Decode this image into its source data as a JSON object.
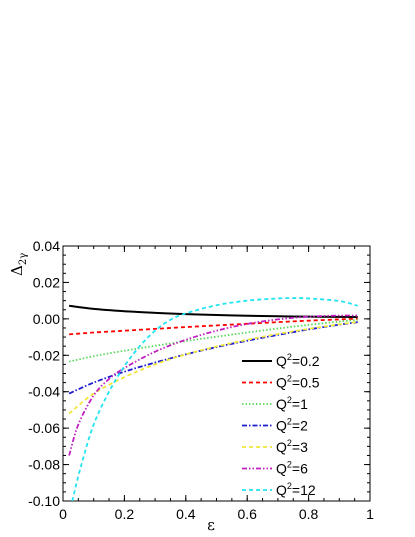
{
  "chart_data": {
    "type": "line",
    "title": "",
    "xlabel": "ε",
    "ylabel_main": "Δ",
    "ylabel_sub": "2γ",
    "xlim": [
      0,
      1
    ],
    "ylim": [
      -0.1,
      0.04
    ],
    "x_ticks": [
      "0",
      "0.2",
      "0.4",
      "0.6",
      "0.8",
      "1"
    ],
    "y_ticks": [
      "-0.10",
      "-0.08",
      "-0.06",
      "-0.04",
      "-0.02",
      "0.00",
      "0.02",
      "0.04"
    ],
    "grid": false,
    "legend_position": "bottom-right",
    "series": [
      {
        "name": "Q²=0.2",
        "legend_base": "Q",
        "legend_sup": "2",
        "legend_value": "=0.2",
        "color": "#000000",
        "dash": "solid",
        "x": [
          0.02,
          0.1,
          0.2,
          0.3,
          0.4,
          0.5,
          0.6,
          0.7,
          0.8,
          0.9,
          0.96
        ],
        "y": [
          0.0072,
          0.0055,
          0.0042,
          0.0033,
          0.0026,
          0.0021,
          0.0017,
          0.0014,
          0.0012,
          0.0011,
          0.001
        ]
      },
      {
        "name": "Q²=0.5",
        "legend_base": "Q",
        "legend_sup": "2",
        "legend_value": "=0.5",
        "color": "#ff0000",
        "dash": "dash",
        "x": [
          0.02,
          0.1,
          0.2,
          0.3,
          0.4,
          0.5,
          0.6,
          0.7,
          0.8,
          0.9,
          0.96
        ],
        "y": [
          -0.0085,
          -0.0075,
          -0.0065,
          -0.0055,
          -0.0045,
          -0.0036,
          -0.0027,
          -0.0018,
          -0.001,
          -0.0003,
          0.0001
        ]
      },
      {
        "name": "Q²=1",
        "legend_base": "Q",
        "legend_sup": "2",
        "legend_value": "=1",
        "color": "#5ad75a",
        "dash": "dot",
        "x": [
          0.02,
          0.1,
          0.2,
          0.3,
          0.4,
          0.5,
          0.6,
          0.7,
          0.8,
          0.9,
          0.96
        ],
        "y": [
          -0.0235,
          -0.0205,
          -0.0175,
          -0.0148,
          -0.0122,
          -0.0098,
          -0.0075,
          -0.0053,
          -0.0033,
          -0.0015,
          -0.0005
        ]
      },
      {
        "name": "Q²=2",
        "legend_base": "Q",
        "legend_sup": "2",
        "legend_value": "=2",
        "color": "#1b1bd0",
        "dash": "dashdot",
        "x": [
          0.02,
          0.1,
          0.2,
          0.3,
          0.4,
          0.5,
          0.6,
          0.7,
          0.8,
          0.9,
          0.96
        ],
        "y": [
          -0.041,
          -0.035,
          -0.029,
          -0.024,
          -0.0195,
          -0.0155,
          -0.012,
          -0.0088,
          -0.0058,
          -0.0032,
          -0.0018
        ]
      },
      {
        "name": "Q²=3",
        "legend_base": "Q",
        "legend_sup": "2",
        "legend_value": "=3",
        "color": "#f0e63c",
        "dash": "dash",
        "x": [
          0.02,
          0.1,
          0.2,
          0.3,
          0.4,
          0.5,
          0.6,
          0.7,
          0.8,
          0.9,
          0.96
        ],
        "y": [
          -0.052,
          -0.041,
          -0.032,
          -0.025,
          -0.0195,
          -0.0152,
          -0.0115,
          -0.0083,
          -0.0055,
          -0.003,
          -0.0016
        ]
      },
      {
        "name": "Q²=6",
        "legend_base": "Q",
        "legend_sup": "2",
        "legend_value": "=6",
        "color": "#c020c0",
        "dash": "dashdotdot",
        "x": [
          0.02,
          0.05,
          0.1,
          0.15,
          0.2,
          0.3,
          0.4,
          0.5,
          0.6,
          0.7,
          0.8,
          0.9,
          0.96
        ],
        "y": [
          -0.075,
          -0.058,
          -0.042,
          -0.033,
          -0.027,
          -0.018,
          -0.0115,
          -0.0065,
          -0.0028,
          -0.0003,
          0.0012,
          0.0018,
          0.0018
        ]
      },
      {
        "name": "Q²=12",
        "legend_base": "Q",
        "legend_sup": "2",
        "legend_value": "=12",
        "color": "#22e4f0",
        "dash": "dash",
        "x": [
          0.03,
          0.06,
          0.1,
          0.15,
          0.2,
          0.25,
          0.3,
          0.35,
          0.4,
          0.5,
          0.6,
          0.7,
          0.75,
          0.8,
          0.9,
          0.96
        ],
        "y": [
          -0.1,
          -0.08,
          -0.058,
          -0.04,
          -0.026,
          -0.015,
          -0.0065,
          -0.0005,
          0.003,
          0.0075,
          0.01,
          0.0112,
          0.0114,
          0.0112,
          0.0098,
          0.0072
        ]
      }
    ]
  }
}
